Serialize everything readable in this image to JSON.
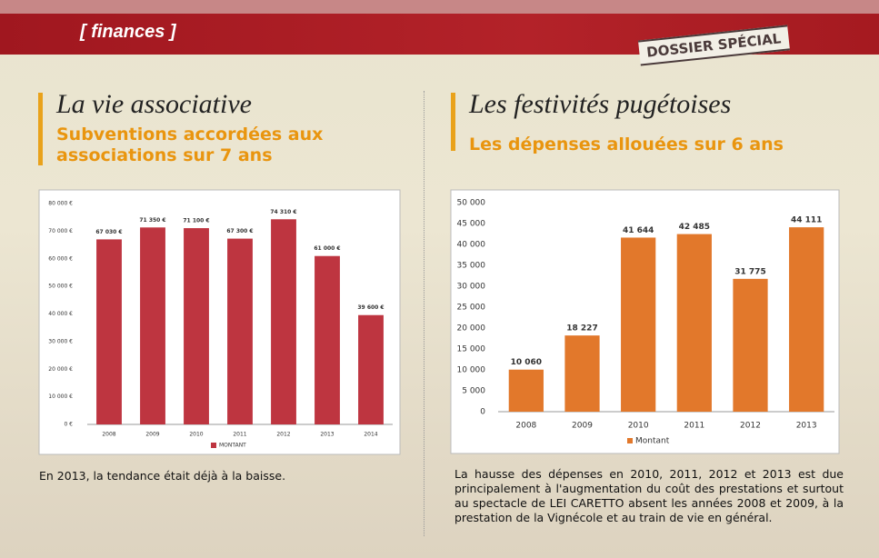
{
  "header": {
    "section": "[ finances ]",
    "badge": "DOSSIER SPÉCIAL"
  },
  "left": {
    "heading": "La vie associative",
    "subheading": "Subventions accordées aux associations sur 7 ans",
    "caption": "En 2013, la tendance était déjà à la baisse."
  },
  "right": {
    "heading": "Les festivités pugétoises",
    "subheading": "Les dépenses allouées sur 6 ans",
    "caption": "La hausse des dépenses en 2010, 2011, 2012 et 2013 est due principalement à l'augmentation du coût des prestations et surtout au spectacle de LEI CARETTO absent les années 2008 et 2009, à la prestation de la Vignécole et au train de vie en général."
  },
  "chart_data": [
    {
      "type": "bar",
      "categories": [
        "2008",
        "2009",
        "2010",
        "2011",
        "2012",
        "2013",
        "2014"
      ],
      "series": [
        {
          "name": "MONTANT",
          "color": "#be3540",
          "values": [
            67030,
            71350,
            71100,
            67300,
            74310,
            61000,
            39600
          ],
          "value_labels": [
            "67 030 €",
            "71 350 €",
            "71 100 €",
            "67 300 €",
            "74 310 €",
            "61 000 €",
            "39 600 €"
          ]
        }
      ],
      "ylim": [
        0,
        80000
      ],
      "yticks": [
        {
          "value": 0,
          "label": "0 €"
        },
        {
          "value": 10000,
          "label": "10 000 €"
        },
        {
          "value": 20000,
          "label": "20 000 €"
        },
        {
          "value": 30000,
          "label": "30 000 €"
        },
        {
          "value": 40000,
          "label": "40 000 €"
        },
        {
          "value": 50000,
          "label": "50 000 €"
        },
        {
          "value": 60000,
          "label": "60 000 €"
        },
        {
          "value": 70000,
          "label": "70 000 €"
        },
        {
          "value": 80000,
          "label": "80 000 €"
        }
      ],
      "grid": false,
      "legend": "bottom"
    },
    {
      "type": "bar",
      "categories": [
        "2008",
        "2009",
        "2010",
        "2011",
        "2012",
        "2013"
      ],
      "series": [
        {
          "name": "Montant",
          "color": "#e2782b",
          "values": [
            10060,
            18227,
            41644,
            42485,
            31775,
            44111
          ],
          "value_labels": [
            "10 060",
            "18 227",
            "41 644",
            "42 485",
            "31 775",
            "44 111"
          ]
        }
      ],
      "ylim": [
        0,
        50000
      ],
      "yticks": [
        0,
        {
          "value": 5000,
          "label": "5 000"
        },
        {
          "value": 10000,
          "label": "10 000"
        },
        {
          "value": 15000,
          "label": "15 000"
        },
        {
          "value": 20000,
          "label": "20 000"
        },
        {
          "value": 25000,
          "label": "25 000"
        },
        {
          "value": 30000,
          "label": "30 000"
        },
        {
          "value": 35000,
          "label": "35 000"
        },
        {
          "value": 40000,
          "label": "40 000"
        },
        {
          "value": 45000,
          "label": "45 000"
        },
        {
          "value": 50000,
          "label": "50 000"
        }
      ],
      "grid": false,
      "legend": "bottom"
    }
  ]
}
